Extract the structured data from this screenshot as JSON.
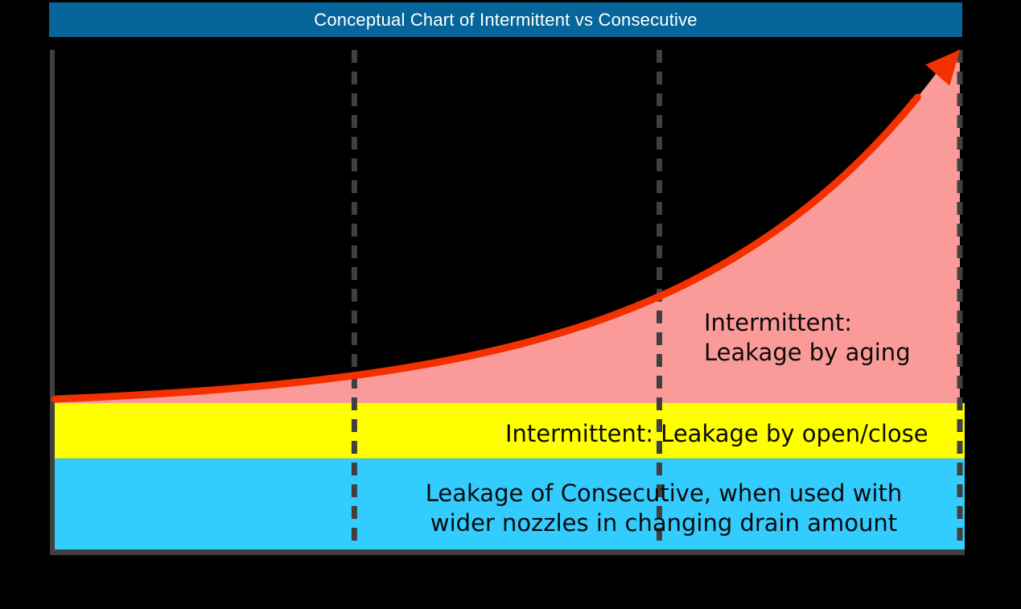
{
  "title_bar": {
    "text": "Conceptual Chart of Intermittent vs Consecutive"
  },
  "colors": {
    "background": "#000000",
    "title_bg": "#06659A",
    "title_fg": "#FFFFFF",
    "axis": "#404040",
    "gridline": "#404040",
    "curve": "#F33000",
    "curve_fill": "#FB9B99",
    "band_open_close": "#FFFF00",
    "band_consecutive": "#33CCFE",
    "label_text": "#0A0A0A"
  },
  "labels": {
    "aging": {
      "line1": "Intermittent:",
      "line2": "Leakage by aging"
    },
    "open_close": "Intermittent: Leakage by open/close",
    "consecutive": {
      "line1": "Leakage of Consecutive, when used with",
      "line2": "wider nozzles in changing drain amount"
    }
  },
  "chart_data": {
    "type": "area",
    "title": "Conceptual Chart of Intermittent vs Consecutive",
    "xlabel": "",
    "ylabel": "",
    "numeric_axes": false,
    "grid": "dashed vertical gridlines",
    "gridlines_x_normalized": [
      0.331,
      0.668,
      1.0
    ],
    "legend_position": "in-plot text labels",
    "series": [
      {
        "name": "Intermittent: Leakage by aging",
        "kind": "exponential_curve_with_area_fill_and_end_arrow",
        "curve_formula": "y = c + a * exp(b * x)  (x,y normalized 0..1 of plot area)",
        "params": {
          "c": 0.28,
          "a": 0.021,
          "b": 3.56
        },
        "key_points_normalized": [
          [
            0,
            0.3
          ],
          [
            0.33,
            0.35
          ],
          [
            0.67,
            0.51
          ],
          [
            1.0,
            1.0
          ]
        ],
        "fill_down_to_y_normalized": 0.293,
        "arrow_at_end": true
      },
      {
        "name": "Intermittent: Leakage by open/close",
        "kind": "horizontal_band",
        "band_y_normalized": [
          0.182,
          0.293
        ]
      },
      {
        "name": "Leakage of Consecutive, when used with wider nozzles in changing drain amount",
        "kind": "horizontal_band",
        "band_y_normalized": [
          0.0,
          0.182
        ]
      }
    ]
  }
}
